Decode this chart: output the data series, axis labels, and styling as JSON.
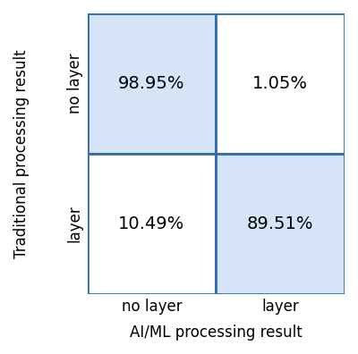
{
  "cell_colors": [
    [
      "#d6e4f7",
      "#ffffff"
    ],
    [
      "#ffffff",
      "#d6e4f7"
    ]
  ],
  "cell_labels": [
    [
      "98.95%",
      "1.05%"
    ],
    [
      "10.49%",
      "89.51%"
    ]
  ],
  "xlabel": "AI/ML processing result",
  "ylabel": "Traditional processing result",
  "xticklabels": [
    "no layer",
    "layer"
  ],
  "yticklabels": [
    "no layer",
    "layer"
  ],
  "grid_color": "#2e6db4",
  "grid_linewidth": 2.0,
  "text_fontsize": 14,
  "label_fontsize": 12,
  "tick_fontsize": 12,
  "background_color": "#ffffff"
}
